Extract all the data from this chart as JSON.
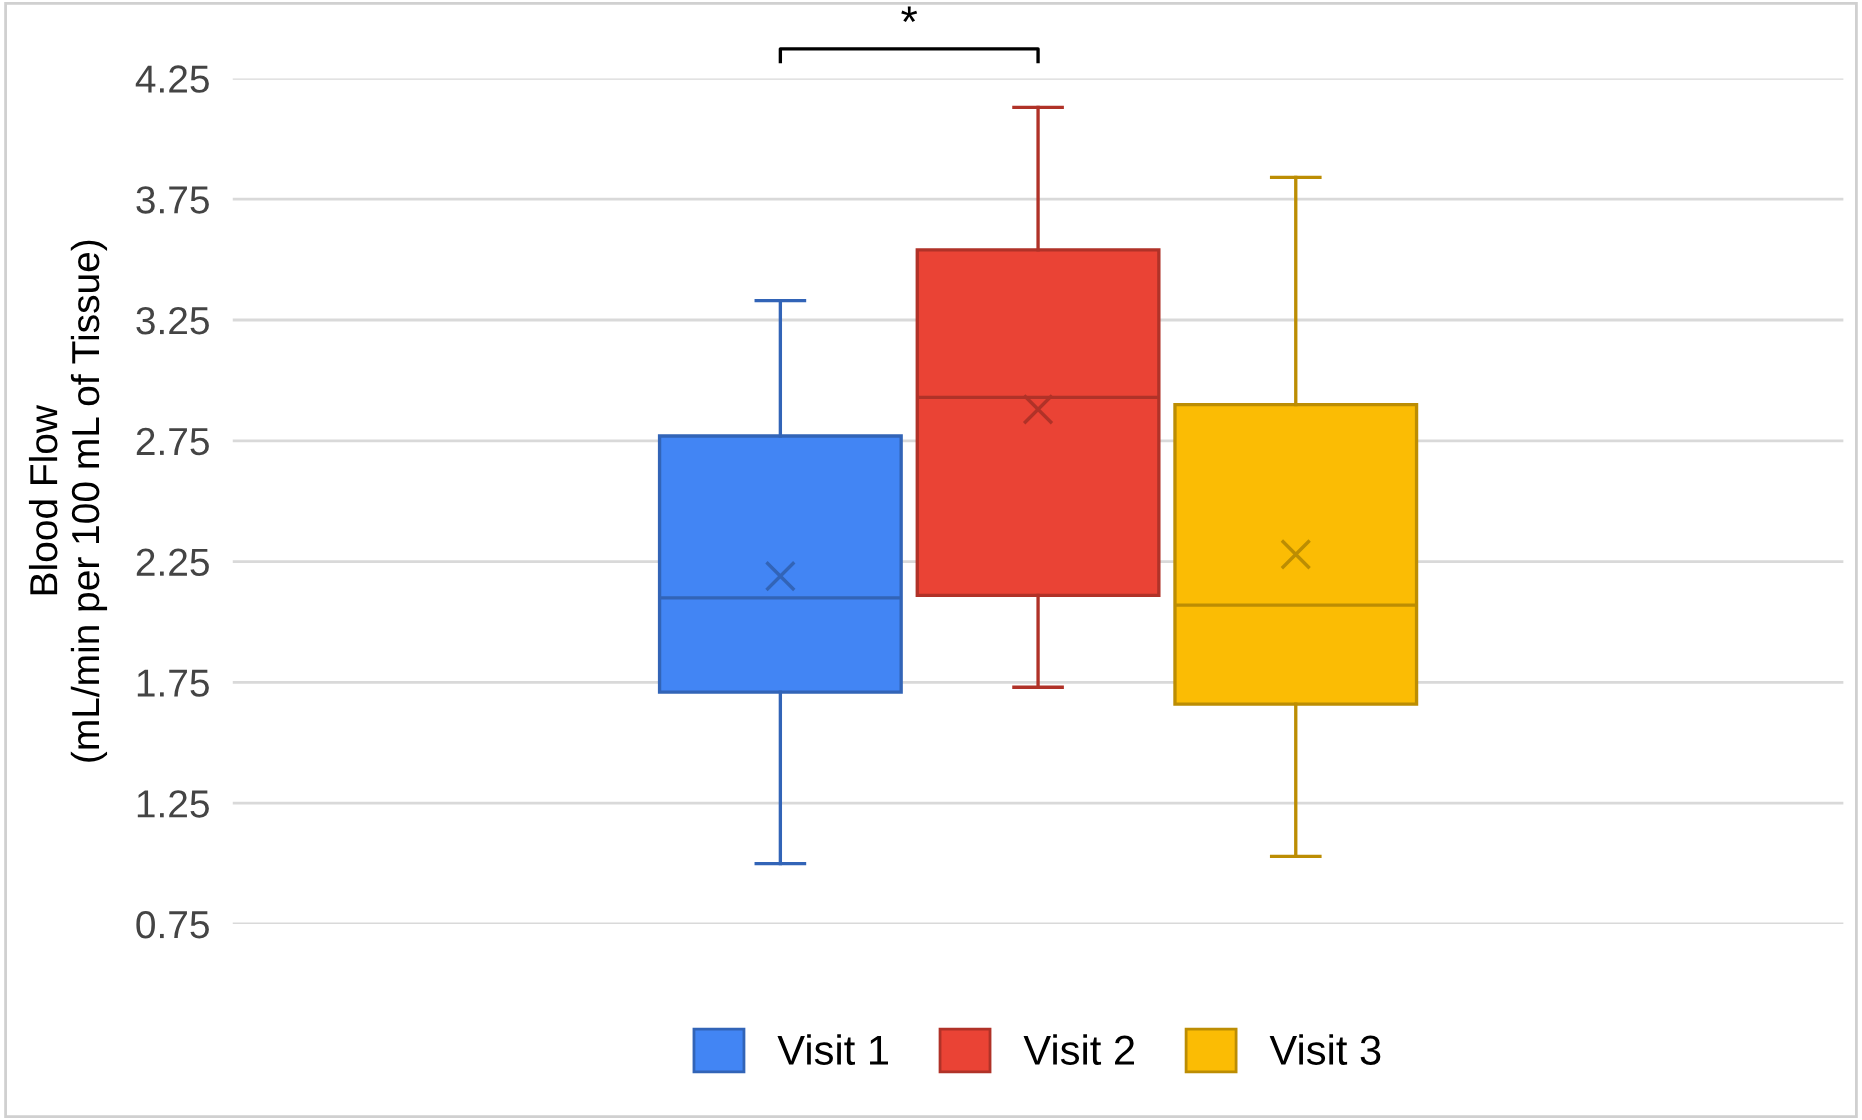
{
  "chart_data": {
    "type": "box",
    "ylabel": "Blood Flow\n(mL/min per 100 mL of Tissue)",
    "categories": [
      null
    ],
    "series": [
      {
        "name": "Visit 1",
        "color": "#4285f4",
        "boxes": [
          {
            "low": 1.0,
            "q1": 1.71,
            "median": 2.1,
            "q3": 2.77,
            "high": 3.33,
            "mean": 2.19
          }
        ]
      },
      {
        "name": "Visit 2",
        "color": "#ea4335",
        "boxes": [
          {
            "low": 1.73,
            "q1": 2.11,
            "median": 2.93,
            "q3": 3.54,
            "high": 4.13,
            "mean": 2.88
          }
        ]
      },
      {
        "name": "Visit 3",
        "color": "#fbbc04",
        "boxes": [
          {
            "low": 1.03,
            "q1": 1.66,
            "median": 2.07,
            "q3": 2.9,
            "high": 3.84,
            "mean": 2.28
          }
        ]
      }
    ],
    "ylim": [
      0.75,
      4.25
    ],
    "yticks": [
      0.75,
      1.25,
      1.75,
      2.25,
      2.75,
      3.25,
      3.75,
      4.25
    ],
    "grid": "y",
    "legend": "bottom",
    "marker": "cross",
    "annotations": [
      "*"
    ]
  }
}
